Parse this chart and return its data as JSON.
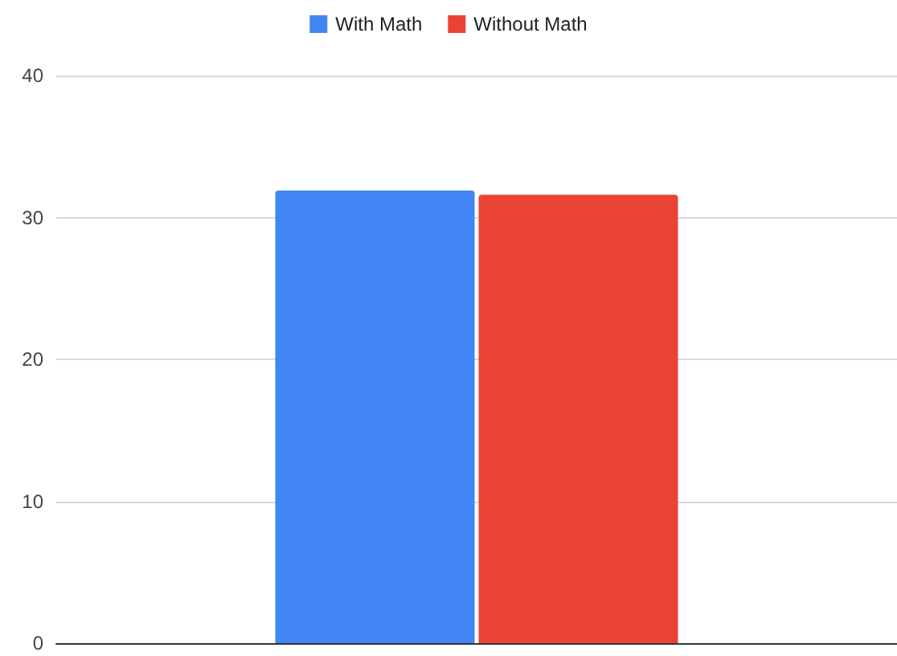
{
  "chart_data": {
    "type": "bar",
    "categories": [
      null
    ],
    "series": [
      {
        "name": "With Math",
        "color": "#4285f4",
        "values": [
          31.9
        ]
      },
      {
        "name": "Without Math",
        "color": "#ea4335",
        "values": [
          31.6
        ]
      }
    ],
    "ylim": [
      0,
      40
    ],
    "yticks": [
      0,
      10,
      20,
      30,
      40
    ],
    "grid": "y",
    "legend": "top"
  }
}
